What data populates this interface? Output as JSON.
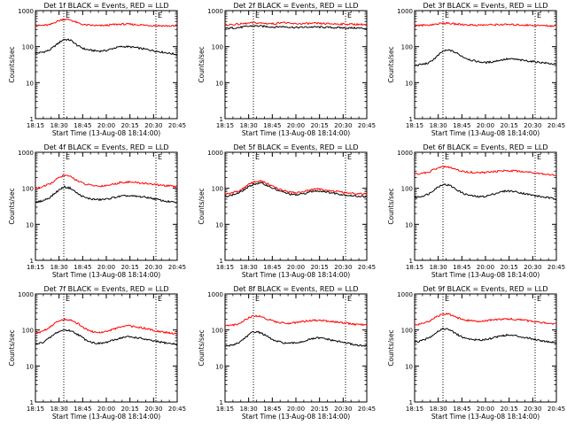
{
  "figure": {
    "xlabel": "Start Time (13-Aug-08 18:14:00)",
    "ylabel": "Counts/sec",
    "xticks": [
      "18:15",
      "18:30",
      "18:45",
      "20:00",
      "20:15",
      "20:30",
      "20:45"
    ],
    "yticks": [
      "1",
      "10",
      "100",
      "1000"
    ],
    "marker_label": "E",
    "colors": {
      "events": "#000000",
      "lld": "#ff0000",
      "background": "#ffffff"
    }
  },
  "chart_data": [
    {
      "type": "line",
      "title": "Det 1f BLACK = Events, RED = LLD",
      "xlabel": "Start Time (13-Aug-08 18:14:00)",
      "ylabel": "Counts/sec",
      "scale_y": "log",
      "ylim": [
        1,
        1000
      ],
      "x": [
        0,
        0.05,
        0.1,
        0.15,
        0.2,
        0.25,
        0.3,
        0.35,
        0.4,
        0.45,
        0.5,
        0.55,
        0.6,
        0.65,
        0.7,
        0.75,
        0.8,
        0.85,
        0.9,
        0.95,
        1.0
      ],
      "series": [
        {
          "name": "Events",
          "color": "#000000",
          "values": [
            65,
            70,
            80,
            115,
            160,
            150,
            105,
            85,
            78,
            75,
            78,
            90,
            100,
            100,
            95,
            88,
            82,
            75,
            70,
            65,
            60
          ]
        },
        {
          "name": "LLD",
          "color": "#ff0000",
          "values": [
            380,
            390,
            400,
            500,
            580,
            550,
            450,
            400,
            390,
            380,
            390,
            410,
            420,
            420,
            410,
            400,
            390,
            385,
            380,
            375,
            370
          ]
        }
      ],
      "markers": [
        0.2,
        0.85
      ]
    },
    {
      "type": "line",
      "title": "Det 2f BLACK = Events, RED = LLD",
      "xlabel": "Start Time (13-Aug-08 18:14:00)",
      "ylabel": "Counts/sec",
      "scale_y": "log",
      "ylim": [
        1,
        1000
      ],
      "x": [
        0,
        0.05,
        0.1,
        0.15,
        0.2,
        0.25,
        0.3,
        0.35,
        0.4,
        0.45,
        0.5,
        0.55,
        0.6,
        0.65,
        0.7,
        0.75,
        0.8,
        0.85,
        0.9,
        0.95,
        1.0
      ],
      "series": [
        {
          "name": "Events",
          "color": "#000000",
          "values": [
            320,
            330,
            340,
            360,
            380,
            370,
            360,
            350,
            360,
            350,
            340,
            345,
            350,
            350,
            345,
            340,
            335,
            330,
            330,
            325,
            320
          ]
        },
        {
          "name": "LLD",
          "color": "#ff0000",
          "values": [
            400,
            410,
            420,
            440,
            460,
            450,
            440,
            430,
            480,
            440,
            430,
            435,
            440,
            440,
            435,
            430,
            425,
            420,
            420,
            415,
            410
          ]
        }
      ],
      "markers": [
        0.2,
        0.85
      ]
    },
    {
      "type": "line",
      "title": "Det 3f BLACK = Events, RED = LLD",
      "xlabel": "Start Time (13-Aug-08 18:14:00)",
      "ylabel": "Counts/sec",
      "scale_y": "log",
      "ylim": [
        1,
        1000
      ],
      "x": [
        0,
        0.05,
        0.1,
        0.15,
        0.2,
        0.25,
        0.3,
        0.35,
        0.4,
        0.45,
        0.5,
        0.55,
        0.6,
        0.65,
        0.7,
        0.75,
        0.8,
        0.85,
        0.9,
        0.95,
        1.0
      ],
      "series": [
        {
          "name": "Events",
          "color": "#000000",
          "values": [
            30,
            32,
            35,
            50,
            75,
            80,
            65,
            50,
            42,
            38,
            36,
            38,
            42,
            45,
            45,
            42,
            40,
            38,
            36,
            34,
            32
          ]
        },
        {
          "name": "LLD",
          "color": "#ff0000",
          "values": [
            380,
            390,
            400,
            420,
            450,
            440,
            420,
            410,
            400,
            395,
            400,
            405,
            410,
            410,
            405,
            400,
            395,
            390,
            385,
            380,
            375
          ]
        }
      ],
      "markers": [
        0.2,
        0.85
      ]
    },
    {
      "type": "line",
      "title": "Det 4f BLACK = Events, RED = LLD",
      "xlabel": "Start Time (13-Aug-08 18:14:00)",
      "ylabel": "Counts/sec",
      "scale_y": "log",
      "ylim": [
        1,
        1000
      ],
      "x": [
        0,
        0.05,
        0.1,
        0.15,
        0.2,
        0.25,
        0.3,
        0.35,
        0.4,
        0.45,
        0.5,
        0.55,
        0.6,
        0.65,
        0.7,
        0.75,
        0.8,
        0.85,
        0.9,
        0.95,
        1.0
      ],
      "series": [
        {
          "name": "Events",
          "color": "#000000",
          "values": [
            40,
            45,
            55,
            80,
            110,
            100,
            70,
            55,
            50,
            48,
            50,
            55,
            60,
            62,
            60,
            58,
            55,
            50,
            45,
            42,
            40
          ]
        },
        {
          "name": "LLD",
          "color": "#ff0000",
          "values": [
            100,
            110,
            130,
            180,
            230,
            210,
            160,
            130,
            120,
            115,
            120,
            130,
            145,
            150,
            145,
            140,
            135,
            125,
            120,
            115,
            110
          ]
        }
      ],
      "markers": [
        0.2,
        0.85
      ]
    },
    {
      "type": "line",
      "title": "Det 5f BLACK = Events, RED = LLD",
      "xlabel": "Start Time (13-Aug-08 18:14:00)",
      "ylabel": "Counts/sec",
      "scale_y": "log",
      "ylim": [
        1,
        1000
      ],
      "x": [
        0,
        0.05,
        0.1,
        0.15,
        0.2,
        0.25,
        0.3,
        0.35,
        0.4,
        0.45,
        0.5,
        0.55,
        0.6,
        0.65,
        0.7,
        0.75,
        0.8,
        0.85,
        0.9,
        0.95,
        1.0
      ],
      "series": [
        {
          "name": "Events",
          "color": "#000000",
          "values": [
            60,
            65,
            75,
            100,
            130,
            140,
            120,
            95,
            80,
            70,
            65,
            70,
            80,
            85,
            82,
            75,
            70,
            65,
            62,
            60,
            58
          ]
        },
        {
          "name": "LLD",
          "color": "#ff0000",
          "values": [
            70,
            75,
            85,
            115,
            150,
            160,
            135,
            105,
            90,
            80,
            75,
            80,
            90,
            95,
            92,
            85,
            80,
            75,
            72,
            70,
            68
          ]
        }
      ],
      "markers": [
        0.2,
        0.85
      ]
    },
    {
      "type": "line",
      "title": "Det 6f BLACK = Events, RED = LLD",
      "xlabel": "Start Time (13-Aug-08 18:14:00)",
      "ylabel": "Counts/sec",
      "scale_y": "log",
      "ylim": [
        1,
        1000
      ],
      "x": [
        0,
        0.05,
        0.1,
        0.15,
        0.2,
        0.25,
        0.3,
        0.35,
        0.4,
        0.45,
        0.5,
        0.55,
        0.6,
        0.65,
        0.7,
        0.75,
        0.8,
        0.85,
        0.9,
        0.95,
        1.0
      ],
      "series": [
        {
          "name": "Events",
          "color": "#000000",
          "values": [
            55,
            60,
            70,
            100,
            130,
            120,
            90,
            70,
            62,
            58,
            60,
            68,
            78,
            85,
            82,
            75,
            68,
            62,
            58,
            54,
            50
          ]
        },
        {
          "name": "LLD",
          "color": "#ff0000",
          "values": [
            250,
            260,
            280,
            350,
            400,
            380,
            320,
            290,
            280,
            270,
            275,
            285,
            300,
            310,
            305,
            295,
            285,
            270,
            255,
            240,
            230
          ]
        }
      ],
      "markers": [
        0.2,
        0.85
      ]
    },
    {
      "type": "line",
      "title": "Det 7f BLACK = Events, RED = LLD",
      "xlabel": "Start Time (13-Aug-08 18:14:00)",
      "ylabel": "Counts/sec",
      "scale_y": "log",
      "ylim": [
        1,
        1000
      ],
      "x": [
        0,
        0.05,
        0.1,
        0.15,
        0.2,
        0.25,
        0.3,
        0.35,
        0.4,
        0.45,
        0.5,
        0.55,
        0.6,
        0.65,
        0.7,
        0.75,
        0.8,
        0.85,
        0.9,
        0.95,
        1.0
      ],
      "series": [
        {
          "name": "Events",
          "color": "#000000",
          "values": [
            40,
            45,
            60,
            85,
            100,
            95,
            75,
            55,
            45,
            42,
            45,
            52,
            60,
            65,
            62,
            58,
            52,
            48,
            45,
            42,
            40
          ]
        },
        {
          "name": "LLD",
          "color": "#ff0000",
          "values": [
            80,
            90,
            120,
            170,
            200,
            190,
            150,
            110,
            90,
            85,
            90,
            105,
            120,
            130,
            125,
            115,
            105,
            95,
            88,
            82,
            78
          ]
        }
      ],
      "markers": [
        0.2,
        0.85
      ]
    },
    {
      "type": "line",
      "title": "Det 8f BLACK = Events, RED = LLD",
      "xlabel": "Start Time (13-Aug-08 18:14:00)",
      "ylabel": "Counts/sec",
      "scale_y": "log",
      "ylim": [
        1,
        1000
      ],
      "x": [
        0,
        0.05,
        0.1,
        0.15,
        0.2,
        0.25,
        0.3,
        0.35,
        0.4,
        0.45,
        0.5,
        0.55,
        0.6,
        0.65,
        0.7,
        0.75,
        0.8,
        0.85,
        0.9,
        0.95,
        1.0
      ],
      "series": [
        {
          "name": "Events",
          "color": "#000000",
          "values": [
            35,
            38,
            45,
            65,
            90,
            85,
            65,
            50,
            45,
            42,
            44,
            48,
            55,
            60,
            58,
            52,
            48,
            44,
            40,
            37,
            35
          ]
        },
        {
          "name": "LLD",
          "color": "#ff0000",
          "values": [
            130,
            135,
            150,
            200,
            250,
            240,
            200,
            170,
            160,
            155,
            160,
            170,
            180,
            185,
            180,
            170,
            165,
            155,
            145,
            140,
            135
          ]
        }
      ],
      "markers": [
        0.2,
        0.85
      ]
    },
    {
      "type": "line",
      "title": "Det 9f BLACK = Events, RED = LLD",
      "xlabel": "Start Time (13-Aug-08 18:14:00)",
      "ylabel": "Counts/sec",
      "scale_y": "log",
      "ylim": [
        1,
        1000
      ],
      "x": [
        0,
        0.05,
        0.1,
        0.15,
        0.2,
        0.25,
        0.3,
        0.35,
        0.4,
        0.45,
        0.5,
        0.55,
        0.6,
        0.65,
        0.7,
        0.75,
        0.8,
        0.85,
        0.9,
        0.95,
        1.0
      ],
      "series": [
        {
          "name": "Events",
          "color": "#000000",
          "values": [
            45,
            50,
            60,
            85,
            110,
            100,
            75,
            60,
            55,
            52,
            55,
            60,
            68,
            72,
            70,
            65,
            60,
            55,
            50,
            47,
            45
          ]
        },
        {
          "name": "LLD",
          "color": "#ff0000",
          "values": [
            140,
            150,
            170,
            230,
            280,
            270,
            220,
            190,
            180,
            175,
            180,
            190,
            200,
            205,
            200,
            190,
            180,
            170,
            160,
            150,
            145
          ]
        }
      ],
      "markers": [
        0.2,
        0.85
      ]
    }
  ]
}
